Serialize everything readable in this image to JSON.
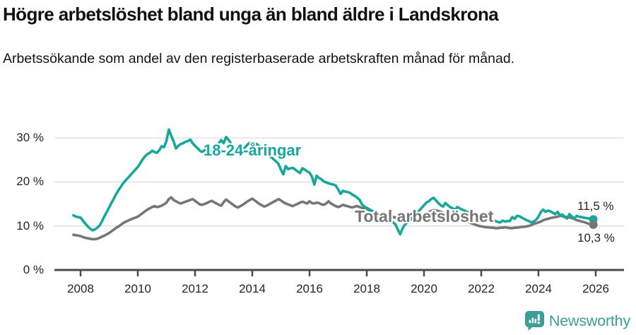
{
  "header": {
    "title": "Högre arbetslöshet bland unga än bland äldre i Landskrona",
    "subtitle": "Arbetssökande som andel av den registerbaserade arbetskraften månad för månad."
  },
  "chart_data": {
    "type": "line",
    "title": "Högre arbetslöshet bland unga än bland äldre i Landskrona",
    "subtitle": "Arbetssökande som andel av den registerbaserade arbetskraften månad för månad.",
    "frequency": "monthly",
    "x_start": "2007-10",
    "x_end": "2025-12",
    "x_ticks": [
      2008,
      2010,
      2012,
      2014,
      2016,
      2018,
      2020,
      2022,
      2024,
      2026
    ],
    "y_ticks": [
      [
        0,
        "0 %"
      ],
      [
        10,
        "10 %"
      ],
      [
        20,
        "20 %"
      ],
      [
        30,
        "30 %"
      ]
    ],
    "ylim": [
      0,
      33
    ],
    "grid": "horizontal",
    "legend_position": "inline-labels",
    "colors": {
      "young": "#18a69d",
      "total": "#767676",
      "gridline": "#dcdcdc",
      "axis": "#4a4a4a"
    },
    "series": [
      {
        "name": "18-24-åringar",
        "color": "#18a69d",
        "end_label": "11,5 %",
        "end_value": 11.5,
        "values": [
          12.4,
          12.1,
          12.0,
          11.9,
          11.2,
          10.5,
          9.9,
          9.4,
          9.0,
          9.2,
          9.6,
          10.1,
          11.1,
          12.2,
          13.2,
          14.2,
          15.3,
          16.3,
          17.3,
          18.2,
          19.0,
          19.8,
          20.4,
          21.0,
          21.6,
          22.2,
          22.8,
          23.4,
          24.2,
          25.1,
          25.8,
          26.3,
          26.6,
          27.1,
          26.8,
          26.6,
          27.2,
          28.1,
          27.9,
          29.3,
          31.9,
          30.5,
          29.2,
          27.6,
          28.2,
          28.6,
          28.8,
          29.1,
          29.3,
          29.6,
          28.8,
          28.2,
          27.7,
          27.1,
          26.8,
          27.2,
          27.6,
          27.1,
          26.8,
          27.4,
          28.1,
          28.8,
          29.5,
          28.8,
          30.2,
          29.6,
          28.8,
          28.1,
          27.5,
          27.0,
          26.6,
          27.2,
          27.9,
          28.5,
          28.9,
          28.4,
          28.9,
          28.5,
          28.1,
          27.6,
          27.1,
          26.6,
          26.1,
          25.6,
          25.1,
          24.6,
          24.1,
          22.8,
          21.7,
          23.6,
          22.9,
          23.1,
          23.2,
          22.8,
          22.4,
          22.0,
          23.1,
          22.8,
          22.4,
          22.1,
          21.2,
          19.4,
          21.4,
          20.9,
          20.6,
          20.1,
          19.9,
          19.7,
          19.5,
          19.4,
          19.2,
          18.3,
          17.3,
          18.0,
          17.8,
          17.7,
          17.5,
          17.1,
          16.8,
          16.4,
          15.9,
          14.9,
          14.4,
          14.1,
          13.8,
          13.5,
          13.2,
          12.9,
          12.7,
          12.4,
          12.1,
          11.8,
          11.5,
          11.1,
          10.8,
          10.4,
          9.2,
          8.1,
          9.4,
          10.3,
          10.8,
          11.3,
          11.9,
          12.4,
          12.9,
          13.5,
          14.1,
          14.7,
          15.3,
          15.6,
          16.1,
          16.4,
          15.8,
          15.2,
          14.7,
          14.4,
          15.2,
          14.7,
          14.3,
          14.0,
          13.7,
          14.3,
          14.0,
          13.7,
          13.5,
          13.2,
          13.0,
          12.8,
          12.7,
          12.5,
          12.4,
          12.3,
          12.1,
          11.9,
          12.3,
          11.6,
          11.3,
          11.1,
          10.9,
          10.8,
          11.2,
          11.0,
          11.1,
          11.1,
          12.0,
          11.6,
          12.3,
          12.2,
          11.9,
          11.6,
          11.3,
          11.1,
          10.8,
          11.0,
          11.4,
          12.1,
          13.2,
          13.7,
          13.2,
          13.5,
          13.3,
          13.0,
          12.7,
          13.2,
          12.4,
          12.6,
          12.0,
          11.7,
          12.7,
          12.1,
          11.7,
          12.3,
          12.1,
          12.0,
          11.9,
          11.8,
          11.7,
          11.6,
          11.5
        ]
      },
      {
        "name": "Total arbetslöshet",
        "color": "#767676",
        "end_label": "10,3 %",
        "end_value": 10.3,
        "values": [
          8.0,
          7.9,
          7.8,
          7.7,
          7.5,
          7.3,
          7.2,
          7.1,
          7.0,
          7.0,
          7.1,
          7.3,
          7.6,
          7.8,
          8.1,
          8.4,
          8.8,
          9.2,
          9.6,
          9.9,
          10.3,
          10.7,
          11.0,
          11.2,
          11.5,
          11.7,
          11.9,
          12.1,
          12.5,
          12.9,
          13.3,
          13.7,
          14.0,
          14.3,
          14.5,
          14.3,
          14.4,
          14.6,
          14.9,
          15.3,
          16.1,
          16.5,
          15.9,
          15.6,
          15.3,
          15.1,
          15.3,
          15.5,
          15.7,
          15.9,
          16.1,
          15.7,
          15.3,
          14.9,
          14.8,
          15.0,
          15.2,
          15.5,
          15.7,
          15.4,
          15.1,
          14.8,
          14.6,
          15.4,
          16.0,
          15.6,
          15.2,
          14.8,
          14.4,
          14.2,
          14.5,
          14.8,
          15.2,
          15.6,
          15.9,
          16.2,
          15.8,
          15.4,
          15.0,
          14.7,
          14.4,
          14.6,
          14.9,
          15.2,
          15.5,
          15.8,
          16.1,
          15.8,
          15.4,
          15.1,
          14.9,
          14.7,
          14.5,
          14.8,
          15.0,
          15.3,
          15.5,
          15.3,
          15.1,
          15.6,
          15.2,
          15.1,
          15.3,
          15.2,
          14.9,
          14.8,
          15.1,
          15.6,
          15.1,
          14.8,
          14.5,
          14.3,
          14.5,
          14.8,
          14.6,
          14.5,
          14.3,
          14.2,
          14.4,
          14.5,
          14.3,
          14.1,
          13.9,
          13.8,
          13.6,
          13.4,
          13.3,
          13.1,
          12.9,
          12.8,
          12.6,
          12.4,
          12.3,
          12.1,
          12.0,
          11.9,
          11.8,
          11.7,
          11.6,
          11.5,
          11.4,
          11.4,
          11.5,
          11.6,
          11.7,
          11.9,
          12.1,
          12.4,
          12.8,
          13.1,
          13.4,
          13.6,
          13.5,
          13.4,
          13.2,
          13.0,
          12.8,
          12.6,
          12.4,
          12.2,
          12.0,
          11.8,
          11.6,
          11.4,
          11.2,
          11.0,
          10.8,
          10.6,
          10.4,
          10.2,
          10.0,
          9.9,
          9.8,
          9.7,
          9.7,
          9.6,
          9.6,
          9.5,
          9.5,
          9.6,
          9.6,
          9.7,
          9.6,
          9.5,
          9.5,
          9.6,
          9.6,
          9.7,
          9.8,
          9.8,
          9.9,
          10.0,
          10.2,
          10.5,
          10.6,
          10.8,
          11.0,
          11.3,
          11.5,
          11.6,
          11.8,
          11.9,
          12.0,
          12.1,
          12.3,
          12.2,
          12.1,
          12.0,
          11.9,
          11.8,
          11.6,
          11.3,
          11.2,
          11.0,
          10.9,
          10.7,
          10.5,
          10.4,
          10.3
        ]
      }
    ]
  },
  "footer": {
    "brand": "Newsworthy"
  }
}
